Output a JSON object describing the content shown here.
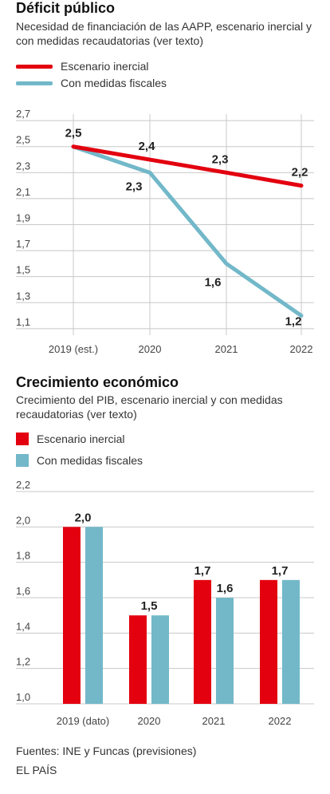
{
  "colors": {
    "inercial": "#e3000f",
    "medidas": "#72b8c9",
    "grid": "#c8c8c8",
    "tick_text": "#444444"
  },
  "chart1": {
    "title": "Déficit público",
    "subtitle": "Necesidad de financiación de las AAPP, escenario inercial y con medidas recaudatorias (ver texto)",
    "legend": [
      "Escenario inercial",
      "Con medidas fiscales"
    ]
  },
  "chart2": {
    "title": "Crecimiento económico",
    "subtitle": "Crecimiento del PIB, escenario inercial y con medidas recaudatorias (ver texto)",
    "legend": [
      "Escenario inercial",
      "Con medidas fiscales"
    ]
  },
  "footer": {
    "source": "Fuentes: INE y Funcas (previsiones)",
    "brand": "EL PAÍS"
  },
  "chart_data": [
    {
      "type": "line",
      "title": "Déficit público",
      "subtitle": "Necesidad de financiación de las AAPP, escenario inercial y con medidas recaudatorias (ver texto)",
      "categories": [
        "2019 (est.)",
        "2020",
        "2021",
        "2022"
      ],
      "series": [
        {
          "name": "Escenario inercial",
          "values": [
            2.5,
            2.4,
            2.3,
            2.2
          ],
          "labels": [
            "2,5",
            "2,4",
            "2,3",
            "2,2"
          ]
        },
        {
          "name": "Con medidas fiscales",
          "values": [
            2.5,
            2.3,
            1.6,
            1.2
          ],
          "labels": [
            "",
            "2,3",
            "1,6",
            "1,2"
          ]
        }
      ],
      "yticks": [
        "2,7",
        "2,5",
        "2,3",
        "2,1",
        "1,9",
        "1,7",
        "1,5",
        "1,3",
        "1,1"
      ],
      "ylim": [
        1.05,
        2.75
      ],
      "grid": true,
      "legend_position": "top-left"
    },
    {
      "type": "bar",
      "title": "Crecimiento económico",
      "subtitle": "Crecimiento del PIB, escenario inercial y con medidas recaudatorias (ver texto)",
      "categories": [
        "2019 (dato)",
        "2020",
        "2021",
        "2022"
      ],
      "series": [
        {
          "name": "Escenario inercial",
          "values": [
            2.0,
            1.5,
            1.7,
            1.7
          ]
        },
        {
          "name": "Con medidas fiscales",
          "values": [
            2.0,
            1.5,
            1.6,
            1.7
          ]
        }
      ],
      "value_labels": [
        [
          "2,0"
        ],
        [
          "1,5"
        ],
        [
          "1,7",
          "1,6"
        ],
        [
          "1,7"
        ]
      ],
      "yticks": [
        "2,2",
        "2,0",
        "1,8",
        "1,6",
        "1,4",
        "1,2",
        "1,0"
      ],
      "ylim": [
        1.0,
        2.2
      ],
      "grid": true,
      "legend_position": "top-left"
    }
  ]
}
